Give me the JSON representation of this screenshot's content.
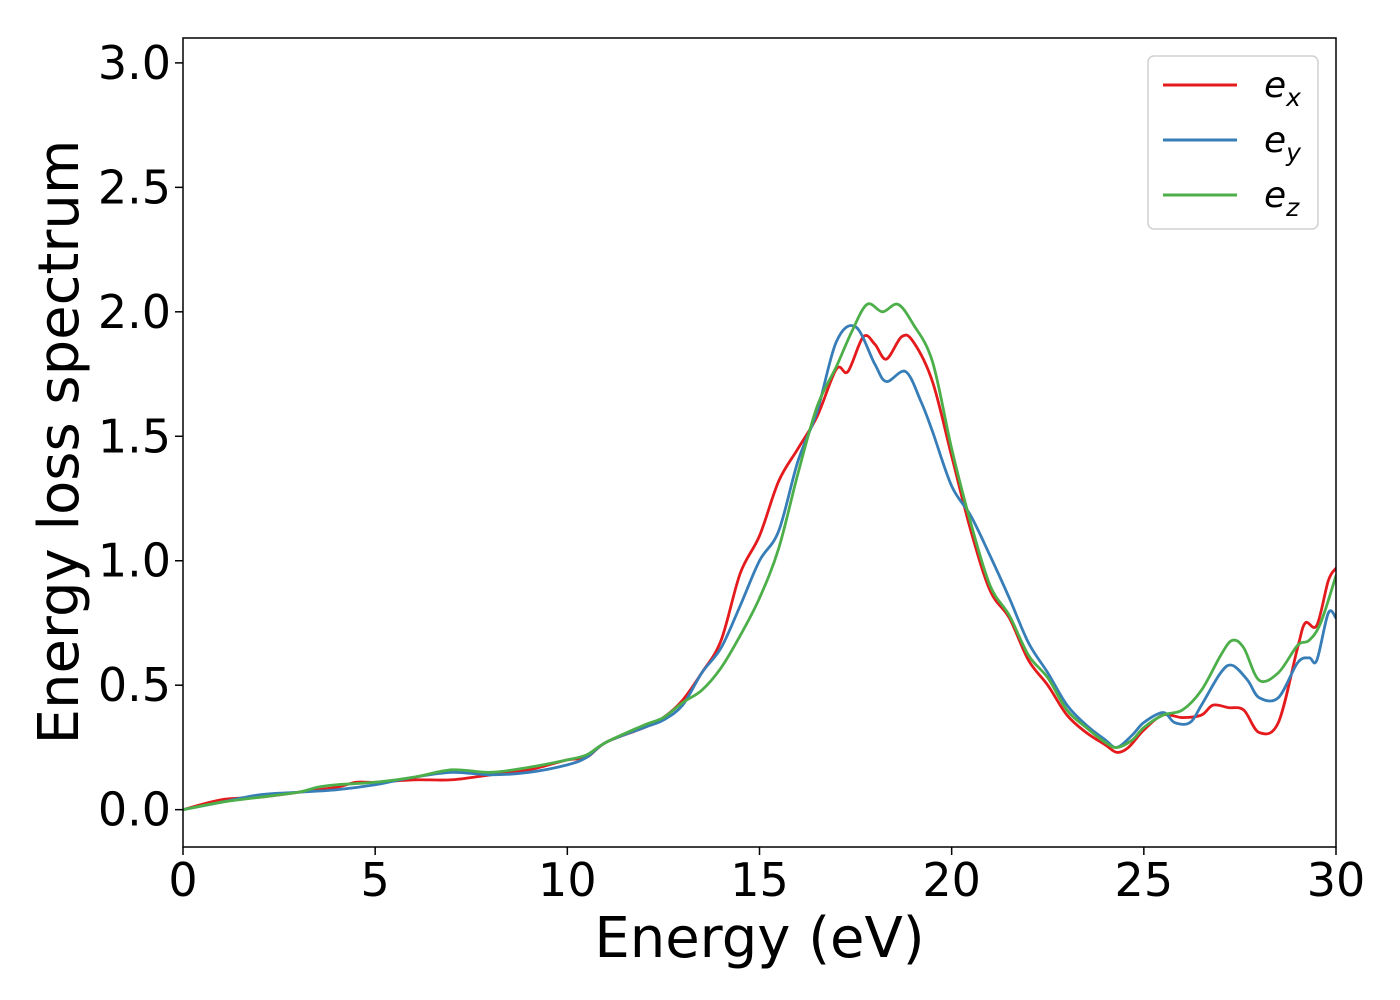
{
  "chart_data": {
    "type": "line",
    "xlabel": "Energy (eV)",
    "ylabel": "Energy loss spectrum",
    "xlim": [
      0,
      30
    ],
    "ylim": [
      -0.15,
      3.1
    ],
    "xticks": [
      0,
      5,
      10,
      15,
      20,
      25,
      30
    ],
    "yticks": [
      0.0,
      0.5,
      1.0,
      1.5,
      2.0,
      2.5,
      3.0
    ],
    "xtick_labels": [
      "0",
      "5",
      "10",
      "15",
      "20",
      "25",
      "30"
    ],
    "ytick_labels": [
      "0.0",
      "0.5",
      "1.0",
      "1.5",
      "2.0",
      "2.5",
      "3.0"
    ],
    "grid": false,
    "legend_position": "top-right",
    "series": [
      {
        "legend_base": "e",
        "legend_sub": "x",
        "color": "#e41a1c",
        "points": [
          [
            0,
            0.0
          ],
          [
            1,
            0.04
          ],
          [
            2,
            0.05
          ],
          [
            3,
            0.07
          ],
          [
            4,
            0.09
          ],
          [
            4.5,
            0.11
          ],
          [
            5,
            0.11
          ],
          [
            6,
            0.12
          ],
          [
            7,
            0.12
          ],
          [
            8,
            0.14
          ],
          [
            9,
            0.16
          ],
          [
            10,
            0.2
          ],
          [
            10.5,
            0.21
          ],
          [
            11,
            0.27
          ],
          [
            12,
            0.33
          ],
          [
            12.5,
            0.37
          ],
          [
            13,
            0.44
          ],
          [
            13.5,
            0.55
          ],
          [
            14,
            0.68
          ],
          [
            14.5,
            0.95
          ],
          [
            15,
            1.1
          ],
          [
            15.5,
            1.32
          ],
          [
            16,
            1.45
          ],
          [
            16.5,
            1.58
          ],
          [
            17,
            1.77
          ],
          [
            17.3,
            1.76
          ],
          [
            17.7,
            1.9
          ],
          [
            18,
            1.87
          ],
          [
            18.3,
            1.81
          ],
          [
            18.7,
            1.9
          ],
          [
            19,
            1.88
          ],
          [
            19.5,
            1.72
          ],
          [
            20,
            1.42
          ],
          [
            20.5,
            1.12
          ],
          [
            21,
            0.88
          ],
          [
            21.5,
            0.77
          ],
          [
            22,
            0.6
          ],
          [
            22.5,
            0.5
          ],
          [
            23,
            0.38
          ],
          [
            23.5,
            0.31
          ],
          [
            24,
            0.26
          ],
          [
            24.3,
            0.23
          ],
          [
            24.6,
            0.25
          ],
          [
            25,
            0.32
          ],
          [
            25.5,
            0.38
          ],
          [
            26,
            0.37
          ],
          [
            26.5,
            0.38
          ],
          [
            26.8,
            0.42
          ],
          [
            27.2,
            0.41
          ],
          [
            27.6,
            0.4
          ],
          [
            28,
            0.31
          ],
          [
            28.5,
            0.35
          ],
          [
            29,
            0.65
          ],
          [
            29.2,
            0.75
          ],
          [
            29.5,
            0.74
          ],
          [
            29.8,
            0.92
          ],
          [
            30,
            0.97
          ]
        ]
      },
      {
        "legend_base": "e",
        "legend_sub": "y",
        "color": "#377eb8",
        "points": [
          [
            0,
            0.0
          ],
          [
            1,
            0.03
          ],
          [
            2,
            0.06
          ],
          [
            3,
            0.07
          ],
          [
            4,
            0.08
          ],
          [
            5,
            0.1
          ],
          [
            6,
            0.13
          ],
          [
            7,
            0.15
          ],
          [
            8,
            0.14
          ],
          [
            9,
            0.15
          ],
          [
            10,
            0.18
          ],
          [
            10.5,
            0.21
          ],
          [
            11,
            0.27
          ],
          [
            12,
            0.33
          ],
          [
            12.5,
            0.36
          ],
          [
            13,
            0.42
          ],
          [
            13.5,
            0.55
          ],
          [
            14,
            0.65
          ],
          [
            14.5,
            0.82
          ],
          [
            15,
            1.0
          ],
          [
            15.5,
            1.12
          ],
          [
            16,
            1.4
          ],
          [
            16.5,
            1.6
          ],
          [
            17,
            1.88
          ],
          [
            17.5,
            1.94
          ],
          [
            18,
            1.79
          ],
          [
            18.3,
            1.72
          ],
          [
            18.8,
            1.76
          ],
          [
            19.2,
            1.64
          ],
          [
            19.5,
            1.52
          ],
          [
            20,
            1.3
          ],
          [
            20.5,
            1.18
          ],
          [
            21,
            1.02
          ],
          [
            21.5,
            0.85
          ],
          [
            22,
            0.67
          ],
          [
            22.5,
            0.55
          ],
          [
            23,
            0.42
          ],
          [
            23.5,
            0.34
          ],
          [
            24,
            0.28
          ],
          [
            24.3,
            0.25
          ],
          [
            24.7,
            0.3
          ],
          [
            25,
            0.35
          ],
          [
            25.5,
            0.39
          ],
          [
            25.8,
            0.35
          ],
          [
            26.2,
            0.35
          ],
          [
            26.5,
            0.42
          ],
          [
            27,
            0.55
          ],
          [
            27.3,
            0.58
          ],
          [
            27.7,
            0.52
          ],
          [
            28,
            0.45
          ],
          [
            28.5,
            0.45
          ],
          [
            29,
            0.59
          ],
          [
            29.3,
            0.61
          ],
          [
            29.5,
            0.6
          ],
          [
            29.8,
            0.79
          ],
          [
            30,
            0.77
          ]
        ]
      },
      {
        "legend_base": "e",
        "legend_sub": "z",
        "color": "#4daf4a",
        "points": [
          [
            0,
            0.0
          ],
          [
            1,
            0.03
          ],
          [
            2,
            0.05
          ],
          [
            3,
            0.07
          ],
          [
            3.5,
            0.09
          ],
          [
            4,
            0.1
          ],
          [
            5,
            0.11
          ],
          [
            6,
            0.13
          ],
          [
            7,
            0.16
          ],
          [
            8,
            0.15
          ],
          [
            9,
            0.17
          ],
          [
            10,
            0.2
          ],
          [
            10.5,
            0.22
          ],
          [
            11,
            0.27
          ],
          [
            12,
            0.34
          ],
          [
            12.5,
            0.37
          ],
          [
            13,
            0.43
          ],
          [
            13.5,
            0.48
          ],
          [
            14,
            0.57
          ],
          [
            14.5,
            0.7
          ],
          [
            15,
            0.85
          ],
          [
            15.5,
            1.05
          ],
          [
            16,
            1.35
          ],
          [
            16.5,
            1.62
          ],
          [
            17,
            1.78
          ],
          [
            17.4,
            1.92
          ],
          [
            17.8,
            2.03
          ],
          [
            18.2,
            2.0
          ],
          [
            18.6,
            2.03
          ],
          [
            19,
            1.95
          ],
          [
            19.5,
            1.8
          ],
          [
            20,
            1.45
          ],
          [
            20.5,
            1.15
          ],
          [
            21,
            0.9
          ],
          [
            21.5,
            0.78
          ],
          [
            22,
            0.62
          ],
          [
            22.5,
            0.53
          ],
          [
            23,
            0.4
          ],
          [
            23.5,
            0.33
          ],
          [
            24,
            0.27
          ],
          [
            24.3,
            0.25
          ],
          [
            24.7,
            0.28
          ],
          [
            25,
            0.33
          ],
          [
            25.5,
            0.38
          ],
          [
            26,
            0.4
          ],
          [
            26.5,
            0.48
          ],
          [
            27,
            0.62
          ],
          [
            27.3,
            0.68
          ],
          [
            27.6,
            0.65
          ],
          [
            28,
            0.52
          ],
          [
            28.5,
            0.55
          ],
          [
            29,
            0.66
          ],
          [
            29.3,
            0.68
          ],
          [
            29.6,
            0.75
          ],
          [
            30,
            0.94
          ]
        ]
      }
    ]
  }
}
